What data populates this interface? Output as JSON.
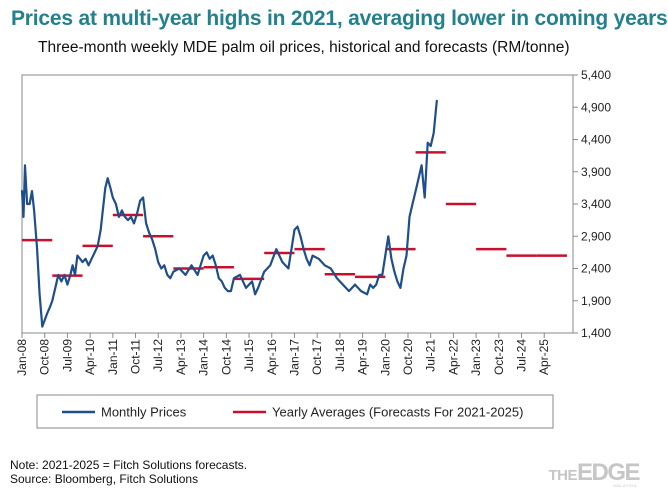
{
  "header": {
    "title": "Prices at multi-year highs in 2021, averaging lower in coming years",
    "subtitle": "Three-month weekly MDE palm oil prices, historical and forecasts (RM/tonne)"
  },
  "chart_data": {
    "type": "line",
    "title": "Prices at multi-year highs in 2021, averaging lower in coming years",
    "subtitle": "Three-month weekly MDE palm oil prices, historical and forecasts (RM/tonne)",
    "xlabel": "",
    "ylabel": "RM/tonne",
    "ylim": [
      1400,
      5400
    ],
    "y_ticks": [
      "1,400",
      "1,900",
      "2,400",
      "2,900",
      "3,400",
      "3,900",
      "4,400",
      "4,900",
      "5,400"
    ],
    "y_axis_side": "right",
    "x_range_years": [
      2008.0,
      2026.2
    ],
    "x_tick_labels": [
      "Jan-08",
      "Oct-08",
      "Jul-09",
      "Apr-10",
      "Jan-11",
      "Oct-11",
      "Jul-12",
      "Apr-13",
      "Jan-14",
      "Oct-14",
      "Jul-15",
      "Apr-16",
      "Jan-17",
      "Oct-17",
      "Jul-18",
      "Apr-19",
      "Jan-20",
      "Oct-20",
      "Jul-21",
      "Apr-22",
      "Jan-23",
      "Oct-23",
      "Jul-24",
      "Apr-25"
    ],
    "grid": false,
    "legend_position": "bottom",
    "series": [
      {
        "name": "Monthly Prices",
        "color": "#1f4e8c",
        "style": "line",
        "x": [
          2008.0,
          2008.05,
          2008.1,
          2008.17,
          2008.25,
          2008.33,
          2008.4,
          2008.5,
          2008.58,
          2008.67,
          2008.75,
          2008.83,
          2008.92,
          2009.0,
          2009.1,
          2009.2,
          2009.3,
          2009.4,
          2009.5,
          2009.6,
          2009.67,
          2009.75,
          2009.83,
          2009.92,
          2010.0,
          2010.1,
          2010.2,
          2010.3,
          2010.4,
          2010.5,
          2010.6,
          2010.67,
          2010.75,
          2010.83,
          2010.92,
          2011.0,
          2011.1,
          2011.2,
          2011.3,
          2011.4,
          2011.5,
          2011.6,
          2011.7,
          2011.8,
          2011.9,
          2012.0,
          2012.1,
          2012.2,
          2012.3,
          2012.4,
          2012.5,
          2012.6,
          2012.7,
          2012.8,
          2012.9,
          2013.0,
          2013.2,
          2013.4,
          2013.6,
          2013.8,
          2014.0,
          2014.1,
          2014.2,
          2014.3,
          2014.4,
          2014.5,
          2014.6,
          2014.7,
          2014.8,
          2014.9,
          2015.0,
          2015.2,
          2015.4,
          2015.6,
          2015.7,
          2015.8,
          2016.0,
          2016.2,
          2016.4,
          2016.6,
          2016.8,
          2017.0,
          2017.1,
          2017.2,
          2017.3,
          2017.4,
          2017.5,
          2017.6,
          2017.8,
          2018.0,
          2018.2,
          2018.4,
          2018.6,
          2018.8,
          2019.0,
          2019.2,
          2019.4,
          2019.5,
          2019.6,
          2019.7,
          2019.8,
          2019.9,
          2020.0,
          2020.1,
          2020.2,
          2020.3,
          2020.4,
          2020.5,
          2020.6,
          2020.7,
          2020.8,
          2020.9,
          2021.0,
          2021.1,
          2021.2,
          2021.3,
          2021.4,
          2021.5,
          2021.6,
          2021.7
        ],
        "values": [
          3600,
          3200,
          4000,
          3400,
          3400,
          3600,
          3300,
          2700,
          2000,
          1500,
          1600,
          1700,
          1800,
          1900,
          2100,
          2300,
          2200,
          2300,
          2150,
          2300,
          2450,
          2300,
          2600,
          2550,
          2500,
          2550,
          2450,
          2550,
          2650,
          2750,
          3000,
          3300,
          3650,
          3800,
          3650,
          3500,
          3400,
          3200,
          3300,
          3200,
          3150,
          3200,
          3100,
          3250,
          3450,
          3500,
          3100,
          2950,
          2850,
          2700,
          2500,
          2400,
          2450,
          2300,
          2250,
          2350,
          2400,
          2300,
          2450,
          2300,
          2600,
          2650,
          2550,
          2600,
          2450,
          2250,
          2200,
          2100,
          2050,
          2050,
          2250,
          2300,
          2100,
          2200,
          2000,
          2100,
          2350,
          2450,
          2700,
          2500,
          2400,
          3000,
          3050,
          2900,
          2700,
          2550,
          2450,
          2600,
          2550,
          2450,
          2400,
          2250,
          2150,
          2050,
          2150,
          2050,
          2000,
          2150,
          2100,
          2150,
          2300,
          2300,
          2600,
          2900,
          2550,
          2350,
          2200,
          2100,
          2400,
          2600,
          3200,
          3400,
          3600,
          3800,
          4000,
          3500,
          4350,
          4300,
          4500,
          5000
        ]
      },
      {
        "name": "Yearly Averages (Forecasts For 2021-2025)",
        "color": "#c8102e",
        "style": "segments",
        "segments": [
          {
            "x0": 2008.0,
            "x1": 2009.0,
            "value": 2840
          },
          {
            "x0": 2009.0,
            "x1": 2010.0,
            "value": 2290
          },
          {
            "x0": 2010.0,
            "x1": 2011.0,
            "value": 2750
          },
          {
            "x0": 2011.0,
            "x1": 2012.0,
            "value": 3230
          },
          {
            "x0": 2012.0,
            "x1": 2013.0,
            "value": 2900
          },
          {
            "x0": 2013.0,
            "x1": 2014.0,
            "value": 2400
          },
          {
            "x0": 2014.0,
            "x1": 2015.0,
            "value": 2420
          },
          {
            "x0": 2015.0,
            "x1": 2016.0,
            "value": 2240
          },
          {
            "x0": 2016.0,
            "x1": 2017.0,
            "value": 2640
          },
          {
            "x0": 2017.0,
            "x1": 2018.0,
            "value": 2700
          },
          {
            "x0": 2018.0,
            "x1": 2019.0,
            "value": 2310
          },
          {
            "x0": 2019.0,
            "x1": 2020.0,
            "value": 2270
          },
          {
            "x0": 2020.0,
            "x1": 2021.0,
            "value": 2700
          },
          {
            "x0": 2021.0,
            "x1": 2022.0,
            "value": 4200
          },
          {
            "x0": 2022.0,
            "x1": 2023.0,
            "value": 3400
          },
          {
            "x0": 2023.0,
            "x1": 2024.0,
            "value": 2700
          },
          {
            "x0": 2024.0,
            "x1": 2025.0,
            "value": 2600
          },
          {
            "x0": 2025.0,
            "x1": 2026.0,
            "value": 2600
          }
        ]
      }
    ],
    "legend": [
      "Monthly Prices",
      "Yearly Averages (Forecasts For 2021-2025)"
    ]
  },
  "footer": {
    "note": "Note: 2021-2025 = Fitch Solutions forecasts.",
    "source": "Source: Bloomberg, Fitch Solutions"
  },
  "logo": {
    "the": "THE",
    "edge": "EDGE",
    "sub": "MALAYSIA"
  }
}
